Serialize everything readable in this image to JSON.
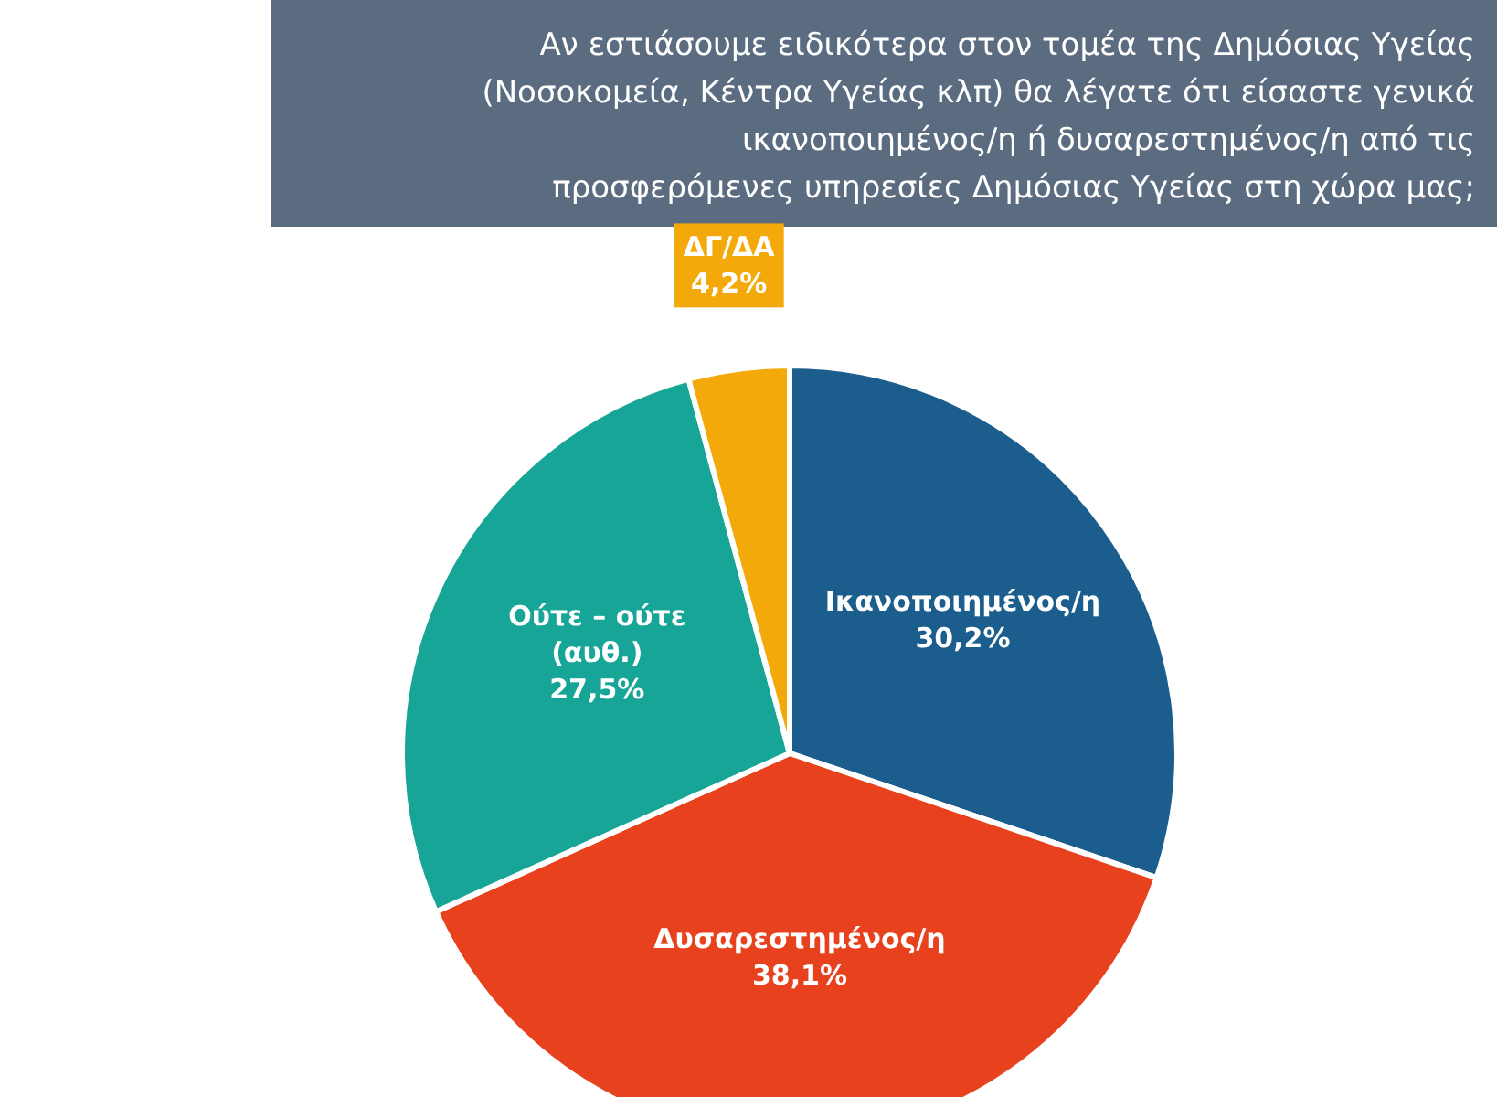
{
  "chart_data": {
    "type": "pie",
    "title": "Αν εστιάσουμε ειδικότερα στον τομέα της Δημόσιας Υγείας\n(Νοσοκομεία, Κέντρα Υγείας κλπ) θα λέγατε ότι είσαστε γενικά\nικανοποιημένος/η ή δυσαρεστημένος/η από τις\nπροσφερόμενες υπηρεσίες Δημόσιας Υγείας στη χώρα μας;",
    "categories": [
      "Ικανοποιημένος/η",
      "Δυσαρεστημένος/η",
      "Ούτε – ούτε\n(αυθ.)",
      "ΔΓ/ΔΑ"
    ],
    "values": [
      30.2,
      38.1,
      27.5,
      4.2
    ],
    "value_labels": [
      "30,2%",
      "38,1%",
      "27,5%",
      "4,2%"
    ],
    "colors": [
      "#1b5e8e",
      "#e8411d",
      "#17a597",
      "#f4a90a"
    ]
  }
}
